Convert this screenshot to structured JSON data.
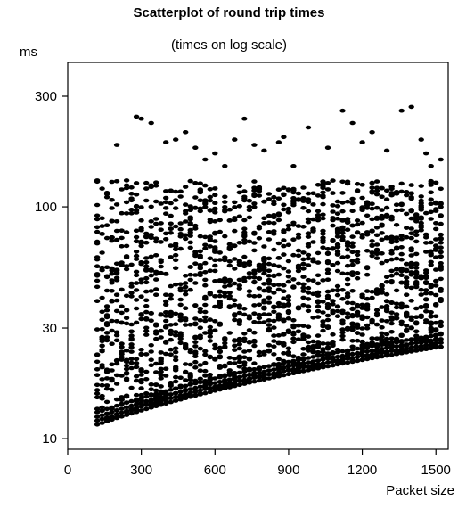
{
  "chart_data": {
    "type": "scatter",
    "title": "Scatterplot of round trip times",
    "subtitle": "(times on log scale)",
    "xlabel": "Packet size",
    "ylabel": "ms",
    "xlim": [
      0,
      1550
    ],
    "ylim": [
      9,
      420
    ],
    "y_scale": "log",
    "xticks": [
      0,
      300,
      600,
      900,
      1200,
      1500
    ],
    "yticks": [
      10,
      30,
      100,
      300
    ],
    "grid": false,
    "x_range": [
      120,
      1530
    ],
    "x_spacing": 20,
    "floor_min": [
      120,
      11.5
    ],
    "floor_max": [
      1530,
      25
    ],
    "points_per_column": 28,
    "outliers": [
      [
        120,
        130
      ],
      [
        160,
        115
      ],
      [
        200,
        185
      ],
      [
        240,
        130
      ],
      [
        280,
        245
      ],
      [
        300,
        240
      ],
      [
        340,
        230
      ],
      [
        400,
        190
      ],
      [
        440,
        195
      ],
      [
        480,
        210
      ],
      [
        520,
        180
      ],
      [
        560,
        160
      ],
      [
        600,
        170
      ],
      [
        640,
        150
      ],
      [
        680,
        195
      ],
      [
        720,
        240
      ],
      [
        760,
        185
      ],
      [
        800,
        175
      ],
      [
        860,
        190
      ],
      [
        880,
        200
      ],
      [
        920,
        150
      ],
      [
        980,
        220
      ],
      [
        1060,
        180
      ],
      [
        1120,
        260
      ],
      [
        1160,
        230
      ],
      [
        1200,
        190
      ],
      [
        1240,
        210
      ],
      [
        1300,
        175
      ],
      [
        1360,
        260
      ],
      [
        1400,
        270
      ],
      [
        1440,
        195
      ],
      [
        1460,
        170
      ],
      [
        1480,
        150
      ],
      [
        1520,
        160
      ]
    ]
  }
}
